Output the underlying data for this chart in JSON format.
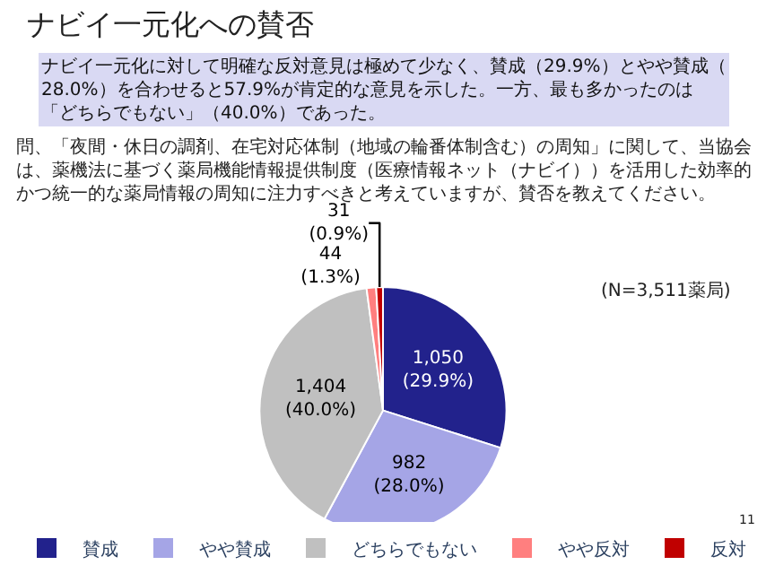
{
  "chart_data": {
    "type": "pie",
    "title": "ナビイ一元化への賛否",
    "subtitle": "ナビイ一元化に対して明確な反対意見は極めて少なく、賛成（29.9%）とやや賛成（28.0%）を合わせると57.9%が肯定的な意見を示した。一方、最も多かったのは「どちらでもない」（40.0%）であった。",
    "annotations": [
      "問、「夜間・休日の調剤、在宅対応体制（地域の輪番体制含む）の周知」に関して、当協会は、薬機法に基づく薬局機能情報提供制度（医療情報ネット（ナビイ））を活用した効率的かつ統一的な薬局情報の周知に注力すべきと考えていますが、賛否を教えてください。",
      "(N=3,511薬局)",
      "11"
    ],
    "categories": [
      "賛成",
      "やや賛成",
      "どちらでもない",
      "やや反対",
      "反対"
    ],
    "values": [
      1050,
      982,
      1404,
      44,
      31
    ],
    "colors": [
      "#22228c",
      "#a5a5e6",
      "#c0c0c0",
      "#ff7f7f",
      "#c00000"
    ],
    "value_labels": [
      "1,050\n(29.9%)",
      "982\n(28.0%)",
      "1,404\n(40.0%)",
      "44\n(1.3%)",
      "31\n(0.9%)"
    ],
    "legend": "bottom"
  }
}
